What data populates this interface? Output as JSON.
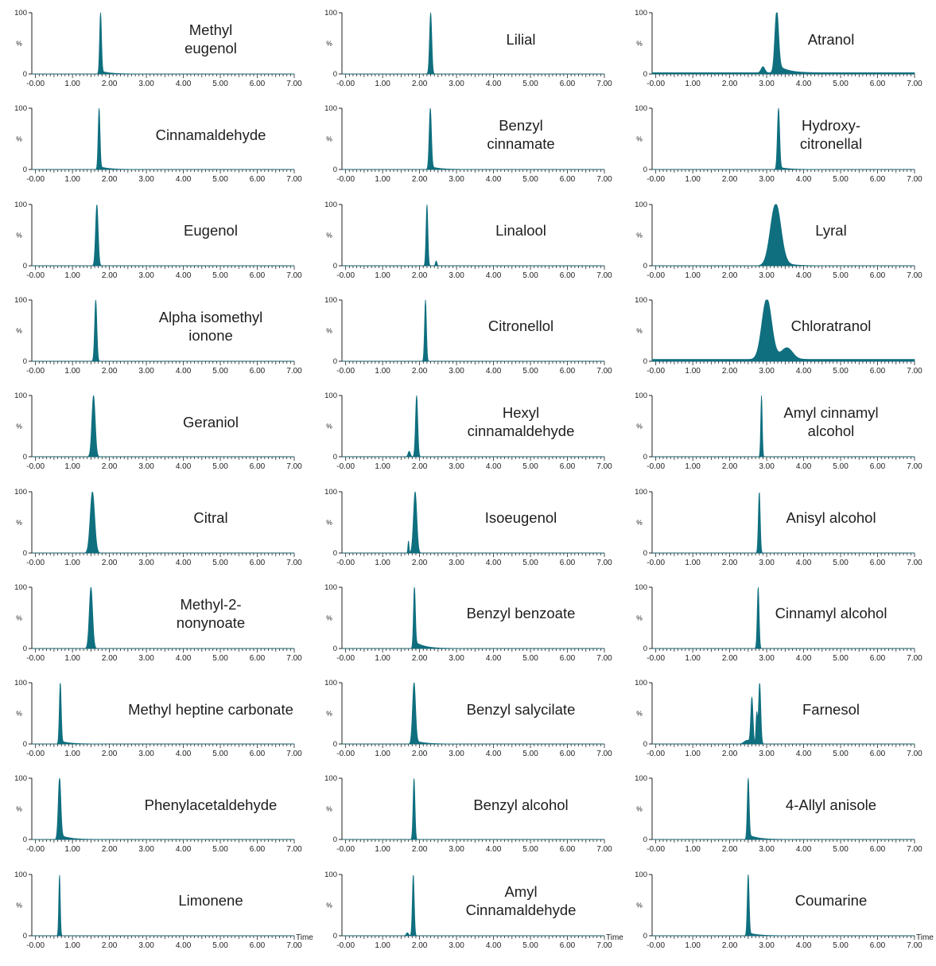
{
  "chart_data": {
    "type": "area",
    "title": "",
    "xlabel": "Time",
    "ylabel": "%",
    "xlim": [
      -0.1,
      7.0
    ],
    "ylim": [
      0,
      100
    ],
    "x_ticks": [
      "-0.00",
      "1.00",
      "2.00",
      "3.00",
      "4.00",
      "5.00",
      "6.00",
      "7.00"
    ],
    "y_ticks": [
      "0",
      "100"
    ],
    "y_axis_symbol": "%",
    "series_color": "#0f6f7f",
    "panels": [
      {
        "name": "Methyl\neugenol",
        "column": 1,
        "row": 1,
        "peaks": [
          {
            "rt": 1.76,
            "height": 100,
            "width": 0.025
          }
        ],
        "tail": 0.05
      },
      {
        "name": "Cinnamaldehyde",
        "column": 1,
        "row": 2,
        "peaks": [
          {
            "rt": 1.72,
            "height": 100,
            "width": 0.025
          }
        ],
        "tail": 0.05
      },
      {
        "name": "Eugenol",
        "column": 1,
        "row": 3,
        "peaks": [
          {
            "rt": 1.66,
            "height": 100,
            "width": 0.035
          }
        ]
      },
      {
        "name": "Alpha isomethyl\nionone",
        "column": 1,
        "row": 4,
        "peaks": [
          {
            "rt": 1.63,
            "height": 100,
            "width": 0.03
          }
        ]
      },
      {
        "name": "Geraniol",
        "column": 1,
        "row": 5,
        "peaks": [
          {
            "rt": 1.57,
            "height": 100,
            "width": 0.045
          }
        ]
      },
      {
        "name": "Citral",
        "column": 1,
        "row": 6,
        "peaks": [
          {
            "rt": 1.54,
            "height": 100,
            "width": 0.06
          }
        ]
      },
      {
        "name": "Methyl-2-\nnonynoate",
        "column": 1,
        "row": 7,
        "peaks": [
          {
            "rt": 1.5,
            "height": 100,
            "width": 0.045
          }
        ]
      },
      {
        "name": "Methyl heptine carbonate",
        "column": 1,
        "row": 8,
        "peaks": [
          {
            "rt": 0.67,
            "height": 100,
            "width": 0.025
          }
        ],
        "tail": 0.05
      },
      {
        "name": "Phenylacetaldehyde",
        "column": 1,
        "row": 9,
        "peaks": [
          {
            "rt": 0.65,
            "height": 100,
            "width": 0.035
          }
        ],
        "tail": 0.08
      },
      {
        "name": "Limonene",
        "column": 1,
        "row": 10,
        "peaks": [
          {
            "rt": 0.65,
            "height": 100,
            "width": 0.02
          }
        ]
      },
      {
        "name": "Lilial",
        "column": 2,
        "row": 1,
        "peaks": [
          {
            "rt": 2.3,
            "height": 100,
            "width": 0.03
          }
        ]
      },
      {
        "name": "Benzyl\ncinnamate",
        "column": 2,
        "row": 2,
        "peaks": [
          {
            "rt": 2.29,
            "height": 100,
            "width": 0.03
          }
        ],
        "tail": 0.05
      },
      {
        "name": "Linalool",
        "column": 2,
        "row": 3,
        "peaks": [
          {
            "rt": 2.2,
            "height": 100,
            "width": 0.025
          },
          {
            "rt": 2.45,
            "height": 8,
            "width": 0.02
          }
        ]
      },
      {
        "name": "Citronellol",
        "column": 2,
        "row": 4,
        "peaks": [
          {
            "rt": 2.16,
            "height": 100,
            "width": 0.025
          }
        ]
      },
      {
        "name": "Hexyl\ncinnamaldehyde",
        "column": 2,
        "row": 5,
        "peaks": [
          {
            "rt": 1.92,
            "height": 100,
            "width": 0.03
          },
          {
            "rt": 1.72,
            "height": 9,
            "width": 0.03
          }
        ]
      },
      {
        "name": "Isoeugenol",
        "column": 2,
        "row": 6,
        "peaks": [
          {
            "rt": 1.88,
            "height": 100,
            "width": 0.045
          },
          {
            "rt": 1.7,
            "height": 20,
            "width": 0.015
          }
        ]
      },
      {
        "name": "Benzyl benzoate",
        "column": 2,
        "row": 7,
        "peaks": [
          {
            "rt": 1.86,
            "height": 100,
            "width": 0.025
          }
        ],
        "tail": 0.12
      },
      {
        "name": "Benzyl salycilate",
        "column": 2,
        "row": 8,
        "peaks": [
          {
            "rt": 1.85,
            "height": 100,
            "width": 0.04
          }
        ],
        "tail": 0.06
      },
      {
        "name": "Benzyl alcohol",
        "column": 2,
        "row": 9,
        "peaks": [
          {
            "rt": 1.85,
            "height": 100,
            "width": 0.025
          }
        ]
      },
      {
        "name": "Amyl\nCinnamaldehyde",
        "column": 2,
        "row": 10,
        "peaks": [
          {
            "rt": 1.83,
            "height": 100,
            "width": 0.025
          },
          {
            "rt": 1.67,
            "height": 5,
            "width": 0.03
          }
        ]
      },
      {
        "name": "Atranol",
        "column": 3,
        "row": 1,
        "peaks": [
          {
            "rt": 3.27,
            "height": 100,
            "width": 0.05
          },
          {
            "rt": 2.9,
            "height": 10,
            "width": 0.05
          }
        ],
        "baseline": 2,
        "tail": 0.15
      },
      {
        "name": "Hydroxy-\ncitronellal",
        "column": 3,
        "row": 2,
        "peaks": [
          {
            "rt": 3.32,
            "height": 100,
            "width": 0.03
          }
        ],
        "tail": 0.04
      },
      {
        "name": "Lyral",
        "column": 3,
        "row": 3,
        "peaks": [
          {
            "rt": 3.24,
            "height": 100,
            "width": 0.14
          }
        ],
        "tail": 0.12
      },
      {
        "name": "Chloratranol",
        "column": 3,
        "row": 4,
        "peaks": [
          {
            "rt": 3.0,
            "height": 98,
            "width": 0.13
          },
          {
            "rt": 3.55,
            "height": 18,
            "width": 0.15
          }
        ],
        "baseline": 3,
        "tail": 0.1
      },
      {
        "name": "Amyl cinnamyl\nalcohol",
        "column": 3,
        "row": 5,
        "peaks": [
          {
            "rt": 2.86,
            "height": 100,
            "width": 0.02
          }
        ]
      },
      {
        "name": "Anisyl alcohol",
        "column": 3,
        "row": 6,
        "peaks": [
          {
            "rt": 2.8,
            "height": 100,
            "width": 0.025
          }
        ]
      },
      {
        "name": "Cinnamyl alcohol",
        "column": 3,
        "row": 7,
        "peaks": [
          {
            "rt": 2.77,
            "height": 100,
            "width": 0.025
          }
        ]
      },
      {
        "name": "Farnesol",
        "column": 3,
        "row": 8,
        "peaks": [
          {
            "rt": 2.81,
            "height": 100,
            "width": 0.03
          },
          {
            "rt": 2.6,
            "height": 75,
            "width": 0.03
          },
          {
            "rt": 2.73,
            "height": 50,
            "width": 0.02
          },
          {
            "rt": 2.47,
            "height": 6,
            "width": 0.08
          }
        ]
      },
      {
        "name": "4-Allyl anisole",
        "column": 3,
        "row": 9,
        "peaks": [
          {
            "rt": 2.5,
            "height": 100,
            "width": 0.025
          }
        ],
        "tail": 0.08
      },
      {
        "name": "Coumarine",
        "column": 3,
        "row": 10,
        "peaks": [
          {
            "rt": 2.5,
            "height": 100,
            "width": 0.025
          }
        ],
        "tail": 0.05
      }
    ]
  }
}
